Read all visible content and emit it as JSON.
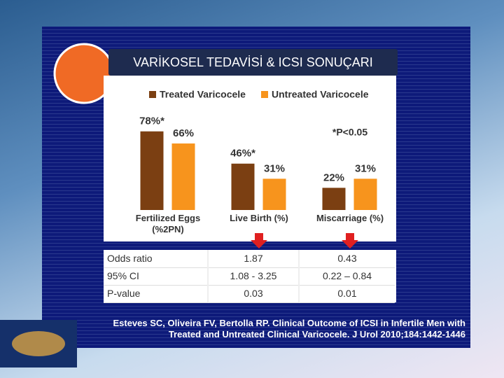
{
  "title": "VARİKOSEL TEDAVİSİ & ICSI SONUÇARI",
  "chart_data": {
    "type": "bar",
    "categories": [
      "Fertilized Eggs\n(%2PN)",
      "Live Birth (%)",
      "Miscarriage (%)"
    ],
    "series": [
      {
        "name": "Treated Varicocele",
        "color": "#7b3f12",
        "values": [
          78,
          46,
          22
        ],
        "value_labels": [
          "78%*",
          "46%*",
          "22%"
        ]
      },
      {
        "name": "Untreated Varicocele",
        "color": "#f7941d",
        "values": [
          66,
          31,
          31
        ],
        "value_labels": [
          "66%",
          "31%",
          "31%"
        ]
      }
    ],
    "annotation": "*P<0.05",
    "ylim": [
      0,
      100
    ]
  },
  "table": {
    "rows": [
      [
        "Odds ratio",
        "1.87",
        "0.43"
      ],
      [
        "95% CI",
        "1.08 - 3.25",
        "0.22 – 0.84"
      ],
      [
        "P-value",
        "0.03",
        "0.01"
      ]
    ]
  },
  "citation": "Esteves SC, Oliveira FV, Bertolla RP. Clinical Outcome of ICSI in Infertile Men with Treated and Untreated Clinical Varicocele. J Urol 2010;184:1442-1446"
}
